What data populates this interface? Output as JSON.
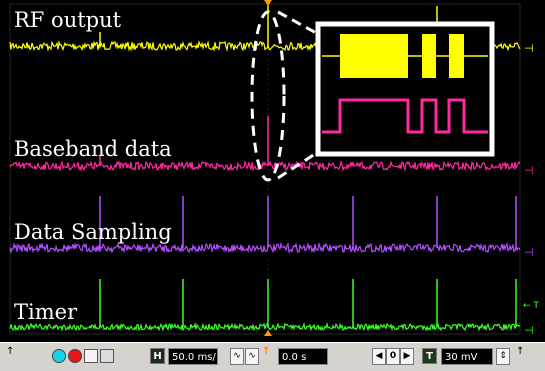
{
  "channels": [
    {
      "id": "ch1",
      "label": "RF output",
      "color": "#ffff00"
    },
    {
      "id": "ch2",
      "label": "Baseband data",
      "color": "#ff2aa0"
    },
    {
      "id": "ch3",
      "label": "Data Sampling",
      "color": "#b44dff"
    },
    {
      "id": "ch4",
      "label": "Timer",
      "color": "#3cff28"
    }
  ],
  "toolbar": {
    "timebase": "50.0 ms/",
    "delay": "0.0 s",
    "delay_step": "0",
    "trigger_level": "30 mV",
    "horizontal_tag": "H",
    "trigger_tag": "T",
    "right_marker_ch2": "2",
    "right_marker_ch3": "3",
    "right_marker_ch4": "4",
    "right_marker_t": "T"
  },
  "icons": {
    "run": "cyan-circle-icon",
    "stop": "red-circle-icon",
    "save": "disk-icon",
    "print": "printer-icon",
    "edge": "waveform-edge-icon"
  }
}
